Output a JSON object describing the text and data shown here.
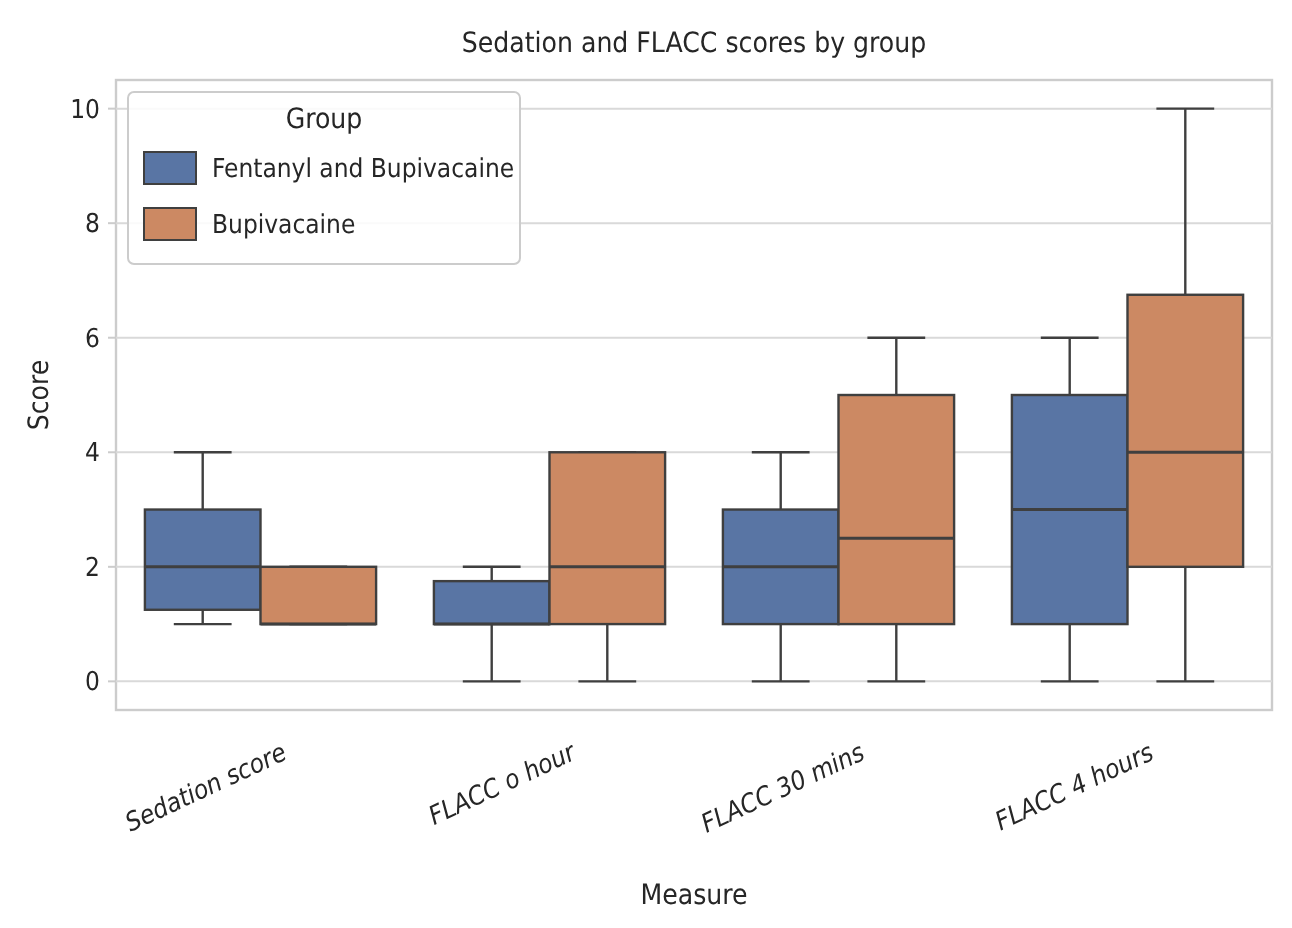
{
  "chart_data": {
    "type": "box",
    "title": "Sedation and FLACC scores by group",
    "xlabel": "Measure",
    "ylabel": "Score",
    "legend_title": "Group",
    "legend": "top left",
    "grid": "y",
    "categories": [
      "Sedation score",
      "FLACC o hour",
      "FLACC 30 mins",
      "FLACC 4 hours"
    ],
    "ylim": [
      -0.5,
      10.5
    ],
    "yticks": [
      0,
      2,
      4,
      6,
      8,
      10
    ],
    "series": [
      {
        "name": "Fentanyl and Bupivacaine",
        "color": "#5975a4",
        "boxes": [
          {
            "low": 1,
            "q1": 1.25,
            "median": 2,
            "q3": 3,
            "high": 4
          },
          {
            "low": 0,
            "q1": 1,
            "median": 1,
            "q3": 1.75,
            "high": 2
          },
          {
            "low": 0,
            "q1": 1,
            "median": 2,
            "q3": 3,
            "high": 4
          },
          {
            "low": 0,
            "q1": 1,
            "median": 3,
            "q3": 5,
            "high": 6
          }
        ]
      },
      {
        "name": "Bupivacaine",
        "color": "#cc8963",
        "boxes": [
          {
            "low": 1,
            "q1": 1,
            "median": 1,
            "q3": 2,
            "high": 2
          },
          {
            "low": 0,
            "q1": 1,
            "median": 2,
            "q3": 4,
            "high": 4
          },
          {
            "low": 0,
            "q1": 1,
            "median": 2.5,
            "q3": 5,
            "high": 6
          },
          {
            "low": 0,
            "q1": 2,
            "median": 4,
            "q3": 6.75,
            "high": 10
          }
        ]
      }
    ]
  }
}
